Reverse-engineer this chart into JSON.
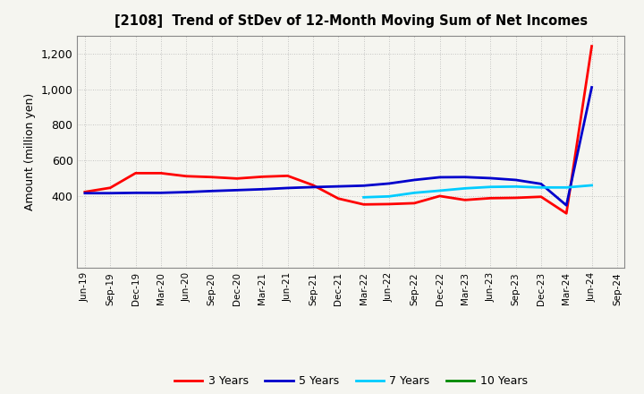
{
  "title": "[2108]  Trend of StDev of 12-Month Moving Sum of Net Incomes",
  "ylabel": "Amount (million yen)",
  "background_color": "#f5f5f0",
  "plot_bg_color": "#f5f5f0",
  "grid_color": "#999999",
  "ylim": [
    0,
    1300
  ],
  "yticks": [
    400,
    600,
    800,
    1000,
    1200
  ],
  "series": {
    "3 Years": {
      "color": "#ff0000",
      "data": [
        [
          "Jun-19",
          425
        ],
        [
          "Sep-19",
          448
        ],
        [
          "Dec-19",
          530
        ],
        [
          "Mar-20",
          530
        ],
        [
          "Jun-20",
          513
        ],
        [
          "Sep-20",
          508
        ],
        [
          "Dec-20",
          500
        ],
        [
          "Mar-21",
          510
        ],
        [
          "Jun-21",
          515
        ],
        [
          "Sep-21",
          463
        ],
        [
          "Dec-21",
          388
        ],
        [
          "Mar-22",
          355
        ],
        [
          "Jun-22",
          357
        ],
        [
          "Sep-22",
          362
        ],
        [
          "Dec-22",
          402
        ],
        [
          "Mar-23",
          380
        ],
        [
          "Jun-23",
          390
        ],
        [
          "Sep-23",
          392
        ],
        [
          "Dec-23",
          398
        ],
        [
          "Mar-24",
          305
        ],
        [
          "Jun-24",
          1240
        ]
      ]
    },
    "5 Years": {
      "color": "#0000cc",
      "data": [
        [
          "Jun-19",
          418
        ],
        [
          "Sep-19",
          418
        ],
        [
          "Dec-19",
          420
        ],
        [
          "Mar-20",
          420
        ],
        [
          "Jun-20",
          424
        ],
        [
          "Sep-20",
          430
        ],
        [
          "Dec-20",
          435
        ],
        [
          "Mar-21",
          440
        ],
        [
          "Jun-21",
          447
        ],
        [
          "Sep-21",
          452
        ],
        [
          "Dec-21",
          456
        ],
        [
          "Mar-22",
          460
        ],
        [
          "Jun-22",
          472
        ],
        [
          "Sep-22",
          492
        ],
        [
          "Dec-22",
          507
        ],
        [
          "Mar-23",
          508
        ],
        [
          "Jun-23",
          502
        ],
        [
          "Sep-23",
          492
        ],
        [
          "Dec-23",
          470
        ],
        [
          "Mar-24",
          350
        ],
        [
          "Jun-24",
          1010
        ]
      ]
    },
    "7 Years": {
      "color": "#00ccff",
      "data": [
        [
          "Mar-22",
          395
        ],
        [
          "Jun-22",
          400
        ],
        [
          "Sep-22",
          420
        ],
        [
          "Dec-22",
          432
        ],
        [
          "Mar-23",
          445
        ],
        [
          "Jun-23",
          453
        ],
        [
          "Sep-23",
          455
        ],
        [
          "Dec-23",
          450
        ],
        [
          "Mar-24",
          450
        ],
        [
          "Jun-24",
          462
        ]
      ]
    },
    "10 Years": {
      "color": "#008800",
      "data": []
    }
  },
  "xtick_labels": [
    "Jun-19",
    "Sep-19",
    "Dec-19",
    "Mar-20",
    "Jun-20",
    "Sep-20",
    "Dec-20",
    "Mar-21",
    "Jun-21",
    "Sep-21",
    "Dec-21",
    "Mar-22",
    "Jun-22",
    "Sep-22",
    "Dec-22",
    "Mar-23",
    "Jun-23",
    "Sep-23",
    "Dec-23",
    "Mar-24",
    "Jun-24",
    "Sep-24"
  ],
  "legend_order": [
    "3 Years",
    "5 Years",
    "7 Years",
    "10 Years"
  ],
  "line_width": 2.0
}
